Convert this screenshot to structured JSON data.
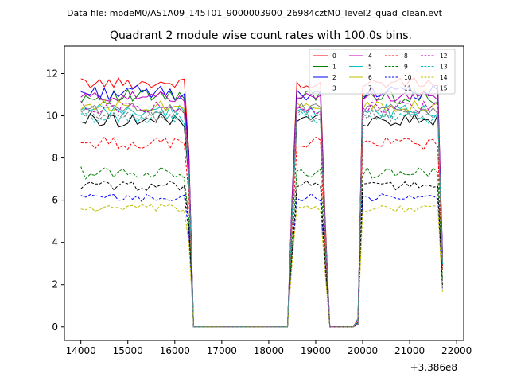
{
  "chart_data": {
    "type": "line",
    "suptitle": "Data file: modeM0/AS1A09_145T01_9000003900_26984cztM0_level2_quad_clean.evt",
    "title": "Quadrant 2 module wise count rates with 100.0s bins.",
    "xlabel": "",
    "ylabel": "",
    "x_offset_label": "+3.386e8",
    "xlim": [
      13650,
      22150
    ],
    "ylim": [
      -0.65,
      13.3
    ],
    "xticks": [
      14000,
      15000,
      16000,
      17000,
      18000,
      19000,
      20000,
      21000,
      22000
    ],
    "xtick_labels": [
      "14000",
      "15000",
      "16000",
      "17000",
      "18000",
      "19000",
      "20000",
      "21000",
      "22000"
    ],
    "yticks": [
      0,
      2,
      4,
      6,
      8,
      10,
      12
    ],
    "ytick_labels": [
      "0",
      "2",
      "4",
      "6",
      "8",
      "10",
      "12"
    ],
    "grid": false,
    "legend_position": "top-right",
    "legend_columns": 4,
    "x_start": 14000,
    "x_step": 100,
    "series": [
      {
        "name": "0",
        "color": "#ff0000",
        "dash": "solid",
        "level": 11.55,
        "amp": 0.25,
        "seed": 1
      },
      {
        "name": "1",
        "color": "#008000",
        "dash": "solid",
        "level": 10.9,
        "amp": 0.35,
        "seed": 2
      },
      {
        "name": "2",
        "color": "#0000ff",
        "dash": "solid",
        "level": 11.1,
        "amp": 0.35,
        "seed": 3
      },
      {
        "name": "3",
        "color": "#000000",
        "dash": "solid",
        "level": 9.8,
        "amp": 0.35,
        "seed": 4
      },
      {
        "name": "4",
        "color": "#bf00bf",
        "dash": "solid",
        "level": 10.9,
        "amp": 0.25,
        "seed": 5
      },
      {
        "name": "5",
        "color": "#00bfbf",
        "dash": "solid",
        "level": 10.2,
        "amp": 0.35,
        "seed": 6
      },
      {
        "name": "6",
        "color": "#bfbf00",
        "dash": "solid",
        "level": 10.5,
        "amp": 0.3,
        "seed": 7
      },
      {
        "name": "7",
        "color": "#808080",
        "dash": "solid",
        "level": 10.3,
        "amp": 0.3,
        "seed": 8
      },
      {
        "name": "8",
        "color": "#ff0000",
        "dash": "dashed",
        "level": 8.7,
        "amp": 0.3,
        "seed": 9
      },
      {
        "name": "9",
        "color": "#008000",
        "dash": "dashed",
        "level": 7.3,
        "amp": 0.3,
        "seed": 10
      },
      {
        "name": "10",
        "color": "#0000ff",
        "dash": "dashed",
        "level": 6.1,
        "amp": 0.2,
        "seed": 11
      },
      {
        "name": "11",
        "color": "#000000",
        "dash": "dashed",
        "level": 6.7,
        "amp": 0.25,
        "seed": 12
      },
      {
        "name": "12",
        "color": "#bf00bf",
        "dash": "dashed",
        "level": 10.4,
        "amp": 0.3,
        "seed": 13
      },
      {
        "name": "13",
        "color": "#00bfbf",
        "dash": "dashed",
        "level": 9.9,
        "amp": 0.3,
        "seed": 14
      },
      {
        "name": "14",
        "color": "#bfbf00",
        "dash": "dashed",
        "level": 5.6,
        "amp": 0.2,
        "seed": 15
      },
      {
        "name": "15",
        "color": "#808080",
        "dash": "dashed",
        "level": 10.0,
        "amp": 0.3,
        "seed": 16
      }
    ],
    "profile": {
      "on_segments": [
        [
          14000,
          16200
        ],
        [
          18700,
          19100
        ],
        [
          20000,
          21600
        ]
      ],
      "zero_segments": [
        [
          16400,
          18400
        ],
        [
          19300,
          19800
        ]
      ],
      "transitions": [
        {
          "x": 16300,
          "factor": 0.72
        },
        {
          "x": 18500,
          "factor": 0.55
        },
        {
          "x": 18600,
          "factor": 1.0
        },
        {
          "x": 19200,
          "factor": 0.45
        },
        {
          "x": 19900,
          "factor": 0.03
        },
        {
          "x": 21700,
          "factor": 0.3
        }
      ]
    }
  }
}
